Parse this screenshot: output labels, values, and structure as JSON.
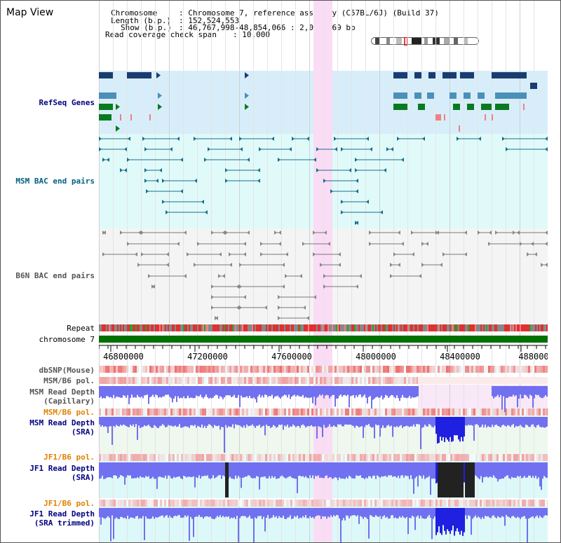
{
  "title": "Map View",
  "info": {
    "chromosome_key": "Chromosome",
    "chromosome_val": ": Chromosome 7, reference assembly (C57BL/6J) (Build 37)",
    "length_key": "Length (b.p.)",
    "length_val": ": 152,524,553",
    "show_key": "Show (b.p.)",
    "show_val": ": 46,767,998-48,854,066 : 2,086,069 bp",
    "coverage_key": "Read coverage check span",
    "coverage_val": ": 10,000"
  },
  "tracks": {
    "refseq": "RefSeq Genes",
    "msm_bac": "MSM BAC end pairs",
    "b6n_bac": "B6N BAC end pairs",
    "repeat": "Repeat",
    "chromosome": "chromosome 7",
    "dbsnp": "dbSNP(Mouse)",
    "msm_b6_pol_1": "MSM/B6 pol.",
    "msm_read_depth_cap_1": "MSM Read Depth",
    "msm_read_depth_cap_2": "(Capillary)",
    "msm_b6_pol_2": "MSM/B6 pol.",
    "msm_read_depth_sra_1": "MSM Read Depth",
    "msm_read_depth_sra_2": "(SRA)",
    "jf1_b6_pol_1": "JF1/B6 pol.",
    "jf1_read_depth_sra_1": "JF1 Read Depth",
    "jf1_read_depth_sra_2": "(SRA)",
    "jf1_b6_pol_2": "JF1/B6 pol.",
    "jf1_read_depth_trim_1": "JF1 Read Depth",
    "jf1_read_depth_trim_2": "(SRA trimmed)"
  },
  "axis": {
    "ticks": [
      "46800000",
      "47200000",
      "47600000",
      "48000000",
      "48400000",
      "488000"
    ]
  },
  "colors": {
    "refseq_bg": "#d7eefa",
    "msm_bac_bg": "#e0fafa",
    "b6n_bac_bg": "#f4f4f4",
    "highlight": "#fadcf5",
    "depth_blue": "#2020e0",
    "depth_light": "#7070f0",
    "label_navy": "#000080",
    "label_teal": "#006080",
    "label_orange": "#e08000"
  }
}
